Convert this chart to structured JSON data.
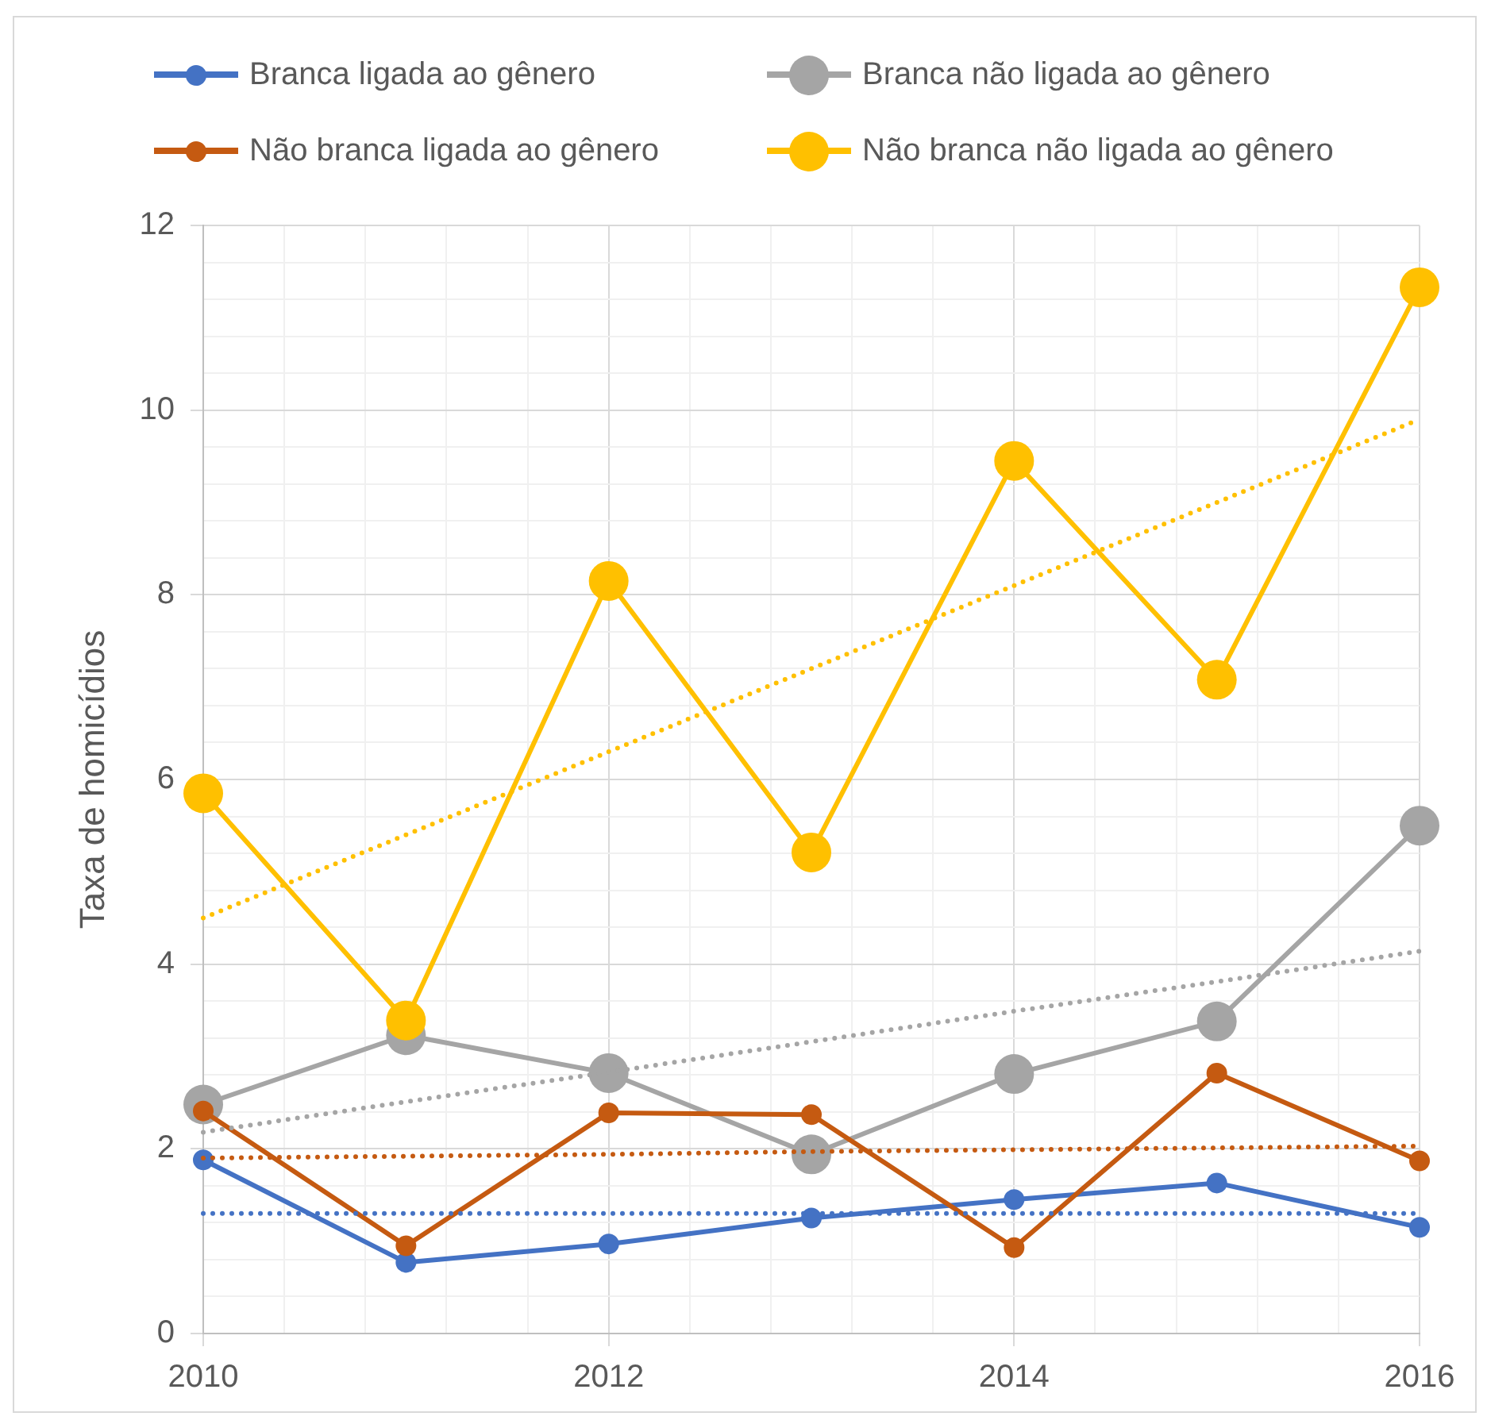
{
  "chart_data": {
    "type": "line",
    "ylabel": "Taxa de homicídios",
    "x": [
      2010,
      2011,
      2012,
      2013,
      2014,
      2015,
      2016
    ],
    "xlim": [
      2010,
      2016
    ],
    "xticks": [
      2010,
      {
        "value": 2010.4,
        "label": null
      },
      {
        "value": 2010.8,
        "label": null
      },
      {
        "value": 2011.2,
        "label": null
      },
      {
        "value": 2011.6,
        "label": null
      },
      2012,
      {
        "value": 2012.4,
        "label": null
      },
      {
        "value": 2012.8,
        "label": null
      },
      {
        "value": 2013.2,
        "label": null
      },
      {
        "value": 2013.6,
        "label": null
      },
      2014,
      {
        "value": 2014.4,
        "label": null
      },
      {
        "value": 2014.8,
        "label": null
      },
      {
        "value": 2015.2,
        "label": null
      },
      {
        "value": 2015.6,
        "label": null
      },
      2016
    ],
    "ylim": [
      0,
      12
    ],
    "yticks": [
      0,
      {
        "value": 0.4,
        "label": null
      },
      {
        "value": 0.8,
        "label": null
      },
      {
        "value": 1.2,
        "label": null
      },
      {
        "value": 1.6,
        "label": null
      },
      2,
      {
        "value": 2.4,
        "label": null
      },
      {
        "value": 2.8,
        "label": null
      },
      {
        "value": 3.2,
        "label": null
      },
      {
        "value": 3.6,
        "label": null
      },
      4,
      {
        "value": 4.4,
        "label": null
      },
      {
        "value": 4.8,
        "label": null
      },
      {
        "value": 5.2,
        "label": null
      },
      {
        "value": 5.6,
        "label": null
      },
      6,
      {
        "value": 6.4,
        "label": null
      },
      {
        "value": 6.8,
        "label": null
      },
      {
        "value": 7.2,
        "label": null
      },
      {
        "value": 7.6,
        "label": null
      },
      8,
      {
        "value": 8.4,
        "label": null
      },
      {
        "value": 8.8,
        "label": null
      },
      {
        "value": 9.2,
        "label": null
      },
      {
        "value": 9.6,
        "label": null
      },
      10,
      {
        "value": 10.4,
        "label": null
      },
      {
        "value": 10.8,
        "label": null
      },
      {
        "value": 11.2,
        "label": null
      },
      {
        "value": 11.6,
        "label": null
      },
      12
    ],
    "grid": true,
    "legend": "top",
    "marker": "circle",
    "line_style": "solid",
    "series": [
      {
        "name": "Branca ligada ao gênero",
        "color": "#4472c4",
        "values": [
          1.88,
          0.77,
          0.97,
          1.25,
          1.45,
          1.63,
          1.15
        ]
      },
      {
        "name": "Branca não ligada ao gênero",
        "color": "#a5a5a5",
        "values": [
          2.48,
          3.23,
          2.82,
          1.94,
          2.81,
          3.38,
          5.5
        ]
      },
      {
        "name": "Não branca ligada ao gênero",
        "color": "#c55a11",
        "values": [
          2.41,
          0.95,
          2.39,
          2.37,
          0.93,
          2.82,
          1.87
        ]
      },
      {
        "name": "Não branca não ligada ao gênero",
        "color": "#ffc000",
        "values": [
          5.85,
          3.39,
          8.15,
          5.21,
          9.45,
          7.08,
          11.33
        ]
      },
      {
        "type": "line",
        "color": "#4472c4",
        "values": [
          1.3,
          1.3,
          1.3,
          1.3,
          1.3,
          1.3,
          1.3
        ],
        "line_style": "dotted",
        "marker": "none"
      },
      {
        "type": "line",
        "color": "#a5a5a5",
        "values": [
          2.18,
          2.51,
          2.83,
          3.16,
          3.49,
          3.81,
          4.14
        ],
        "line_style": "dotted",
        "marker": "none"
      },
      {
        "type": "line",
        "color": "#c55a11",
        "values": [
          1.9,
          1.92,
          1.94,
          1.97,
          1.99,
          2.01,
          2.03
        ],
        "line_style": "dotted",
        "marker": "none"
      },
      {
        "type": "line",
        "color": "#ffc000",
        "values": [
          4.5,
          5.4,
          6.3,
          7.2,
          8.1,
          9.0,
          9.9
        ],
        "line_style": "dotted",
        "marker": "none"
      }
    ]
  }
}
